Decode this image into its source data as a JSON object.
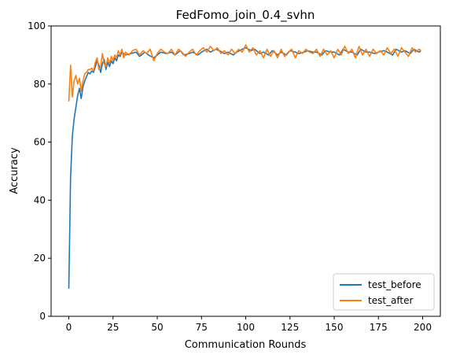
{
  "chart_data": {
    "type": "line",
    "title": "FedFomo_join_0.4_svhn",
    "xlabel": "Communication Rounds",
    "ylabel": "Accuracy",
    "xlim": [
      -10,
      210
    ],
    "ylim": [
      0,
      100
    ],
    "xticks": [
      0,
      25,
      50,
      75,
      100,
      125,
      150,
      175,
      200
    ],
    "yticks": [
      0,
      20,
      40,
      60,
      80,
      100
    ],
    "legend_position": "lower-right",
    "grid": false,
    "series": [
      {
        "name": "test_before",
        "color": "#1f77b4",
        "points": [
          [
            0,
            9.5
          ],
          [
            1,
            48
          ],
          [
            2,
            62
          ],
          [
            3,
            68
          ],
          [
            4,
            72
          ],
          [
            5,
            76
          ],
          [
            6,
            78.5
          ],
          [
            7,
            75
          ],
          [
            8,
            79
          ],
          [
            9,
            81
          ],
          [
            10,
            82.5
          ],
          [
            11,
            84
          ],
          [
            12,
            83.5
          ],
          [
            13,
            84.5
          ],
          [
            14,
            84
          ],
          [
            15,
            86
          ],
          [
            16,
            88
          ],
          [
            17,
            86.5
          ],
          [
            18,
            84
          ],
          [
            19,
            87
          ],
          [
            20,
            88.5
          ],
          [
            21,
            85
          ],
          [
            22,
            87.5
          ],
          [
            23,
            86
          ],
          [
            24,
            88
          ],
          [
            25,
            87
          ],
          [
            26,
            89
          ],
          [
            27,
            88
          ],
          [
            28,
            90
          ],
          [
            29,
            89.5
          ],
          [
            30,
            91
          ],
          [
            32,
            90
          ],
          [
            35,
            90.5
          ],
          [
            38,
            91
          ],
          [
            40,
            89.5
          ],
          [
            43,
            91
          ],
          [
            45,
            90
          ],
          [
            48,
            89
          ],
          [
            50,
            90
          ],
          [
            52,
            91
          ],
          [
            55,
            90.5
          ],
          [
            58,
            91
          ],
          [
            60,
            90
          ],
          [
            63,
            91.5
          ],
          [
            65,
            90
          ],
          [
            68,
            90.5
          ],
          [
            70,
            91
          ],
          [
            73,
            90
          ],
          [
            75,
            91
          ],
          [
            78,
            92
          ],
          [
            80,
            91
          ],
          [
            83,
            92
          ],
          [
            85,
            91.5
          ],
          [
            88,
            90.5
          ],
          [
            90,
            91
          ],
          [
            93,
            90
          ],
          [
            95,
            91
          ],
          [
            98,
            92
          ],
          [
            100,
            92.5
          ],
          [
            103,
            91.5
          ],
          [
            105,
            92
          ],
          [
            108,
            90.5
          ],
          [
            110,
            91
          ],
          [
            113,
            90
          ],
          [
            115,
            91.5
          ],
          [
            118,
            90
          ],
          [
            120,
            91
          ],
          [
            123,
            90
          ],
          [
            125,
            91.5
          ],
          [
            128,
            91
          ],
          [
            130,
            90.5
          ],
          [
            133,
            91
          ],
          [
            135,
            91.5
          ],
          [
            138,
            91
          ],
          [
            140,
            91
          ],
          [
            143,
            90
          ],
          [
            145,
            91.5
          ],
          [
            148,
            91
          ],
          [
            150,
            91
          ],
          [
            153,
            90
          ],
          [
            155,
            92
          ],
          [
            158,
            91
          ],
          [
            160,
            91
          ],
          [
            163,
            90
          ],
          [
            165,
            92
          ],
          [
            168,
            91
          ],
          [
            170,
            91
          ],
          [
            173,
            90.5
          ],
          [
            175,
            91
          ],
          [
            178,
            91.5
          ],
          [
            180,
            91
          ],
          [
            183,
            90
          ],
          [
            185,
            92
          ],
          [
            188,
            91
          ],
          [
            190,
            91.5
          ],
          [
            193,
            90.5
          ],
          [
            195,
            92
          ],
          [
            198,
            91
          ],
          [
            199,
            91.5
          ]
        ]
      },
      {
        "name": "test_after",
        "color": "#ff7f0e",
        "points": [
          [
            0,
            74
          ],
          [
            1,
            86.5
          ],
          [
            2,
            75.5
          ],
          [
            3,
            81
          ],
          [
            4,
            83
          ],
          [
            5,
            80
          ],
          [
            6,
            82
          ],
          [
            7,
            77.5
          ],
          [
            8,
            81
          ],
          [
            9,
            83.5
          ],
          [
            10,
            84
          ],
          [
            11,
            85
          ],
          [
            12,
            85
          ],
          [
            13,
            85.5
          ],
          [
            14,
            84.5
          ],
          [
            15,
            87.5
          ],
          [
            16,
            89
          ],
          [
            17,
            85
          ],
          [
            18,
            86
          ],
          [
            19,
            90.5
          ],
          [
            20,
            87
          ],
          [
            21,
            86
          ],
          [
            22,
            89
          ],
          [
            23,
            87
          ],
          [
            24,
            89.5
          ],
          [
            25,
            88
          ],
          [
            26,
            90
          ],
          [
            27,
            89
          ],
          [
            28,
            91.5
          ],
          [
            29,
            90
          ],
          [
            30,
            92
          ],
          [
            31,
            89
          ],
          [
            32,
            91
          ],
          [
            34,
            90
          ],
          [
            36,
            91.5
          ],
          [
            38,
            92
          ],
          [
            40,
            90
          ],
          [
            42,
            91.5
          ],
          [
            44,
            90.5
          ],
          [
            46,
            92
          ],
          [
            48,
            88
          ],
          [
            50,
            90.5
          ],
          [
            52,
            92
          ],
          [
            54,
            91
          ],
          [
            56,
            90.5
          ],
          [
            58,
            92
          ],
          [
            60,
            90
          ],
          [
            62,
            92
          ],
          [
            64,
            91
          ],
          [
            66,
            89.5
          ],
          [
            68,
            91
          ],
          [
            70,
            92
          ],
          [
            72,
            90
          ],
          [
            74,
            91.5
          ],
          [
            76,
            92.5
          ],
          [
            78,
            91
          ],
          [
            80,
            93
          ],
          [
            82,
            91.5
          ],
          [
            84,
            92.5
          ],
          [
            86,
            90.5
          ],
          [
            88,
            91.5
          ],
          [
            90,
            90
          ],
          [
            92,
            92
          ],
          [
            94,
            90.5
          ],
          [
            96,
            92
          ],
          [
            98,
            91
          ],
          [
            100,
            93.5
          ],
          [
            102,
            91
          ],
          [
            104,
            92.5
          ],
          [
            106,
            90
          ],
          [
            108,
            91.5
          ],
          [
            110,
            89
          ],
          [
            112,
            92
          ],
          [
            114,
            89.5
          ],
          [
            116,
            91.5
          ],
          [
            118,
            89
          ],
          [
            120,
            92
          ],
          [
            122,
            89.5
          ],
          [
            124,
            91
          ],
          [
            126,
            92
          ],
          [
            128,
            89
          ],
          [
            130,
            91.5
          ],
          [
            132,
            90.5
          ],
          [
            134,
            92
          ],
          [
            136,
            91
          ],
          [
            138,
            90.5
          ],
          [
            140,
            92
          ],
          [
            142,
            89.5
          ],
          [
            144,
            92
          ],
          [
            146,
            90
          ],
          [
            148,
            91.5
          ],
          [
            150,
            89
          ],
          [
            152,
            92
          ],
          [
            154,
            90
          ],
          [
            156,
            93
          ],
          [
            158,
            90.5
          ],
          [
            160,
            92
          ],
          [
            162,
            89
          ],
          [
            164,
            93
          ],
          [
            166,
            90
          ],
          [
            168,
            92
          ],
          [
            170,
            89.5
          ],
          [
            172,
            92
          ],
          [
            174,
            90.5
          ],
          [
            176,
            91.5
          ],
          [
            178,
            90
          ],
          [
            180,
            92.5
          ],
          [
            182,
            90.5
          ],
          [
            184,
            92
          ],
          [
            186,
            89.5
          ],
          [
            188,
            92.5
          ],
          [
            190,
            91
          ],
          [
            192,
            89.5
          ],
          [
            194,
            92.5
          ],
          [
            196,
            91
          ],
          [
            198,
            92
          ],
          [
            199,
            91.5
          ]
        ]
      }
    ]
  }
}
